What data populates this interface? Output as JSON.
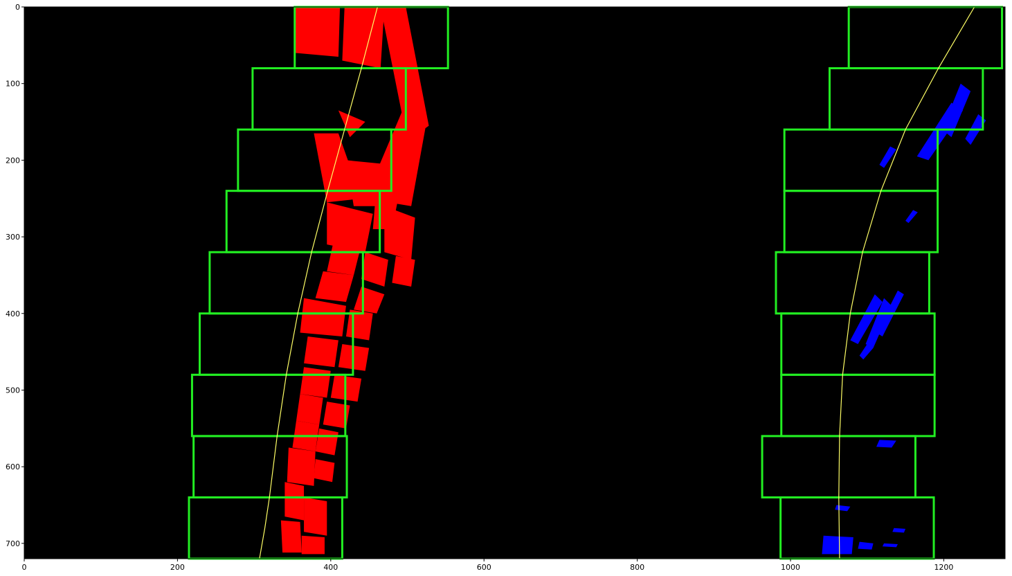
{
  "chart_data": {
    "type": "scatter",
    "title": "",
    "xlabel": "",
    "ylabel": "",
    "xlim": [
      0,
      1280
    ],
    "ylim": [
      720,
      0
    ],
    "xticks": [
      0,
      200,
      400,
      600,
      800,
      1000,
      1200
    ],
    "yticks": [
      0,
      100,
      200,
      300,
      400,
      500,
      600,
      700
    ],
    "grid": false,
    "background": "#000000",
    "colors": {
      "left_lane": "#ff0000",
      "right_lane": "#0000ff",
      "window": "#22ee22",
      "fit": "#ffff66"
    },
    "left_windows": [
      {
        "x0": 353,
        "x1": 553,
        "y0": 0,
        "y1": 80
      },
      {
        "x0": 298,
        "x1": 498,
        "y0": 80,
        "y1": 160
      },
      {
        "x0": 279,
        "x1": 479,
        "y0": 160,
        "y1": 240
      },
      {
        "x0": 264,
        "x1": 464,
        "y0": 240,
        "y1": 320
      },
      {
        "x0": 242,
        "x1": 442,
        "y0": 320,
        "y1": 400
      },
      {
        "x0": 229,
        "x1": 429,
        "y0": 400,
        "y1": 480
      },
      {
        "x0": 219,
        "x1": 419,
        "y0": 480,
        "y1": 560
      },
      {
        "x0": 221,
        "x1": 421,
        "y0": 560,
        "y1": 640
      },
      {
        "x0": 215,
        "x1": 415,
        "y0": 640,
        "y1": 720
      }
    ],
    "right_windows": [
      {
        "x0": 1076,
        "x1": 1276,
        "y0": 0,
        "y1": 80
      },
      {
        "x0": 1051,
        "x1": 1251,
        "y0": 80,
        "y1": 160
      },
      {
        "x0": 992,
        "x1": 1192,
        "y0": 160,
        "y1": 240
      },
      {
        "x0": 992,
        "x1": 1192,
        "y0": 240,
        "y1": 320
      },
      {
        "x0": 981,
        "x1": 1181,
        "y0": 320,
        "y1": 400
      },
      {
        "x0": 988,
        "x1": 1188,
        "y0": 400,
        "y1": 480
      },
      {
        "x0": 988,
        "x1": 1188,
        "y0": 480,
        "y1": 560
      },
      {
        "x0": 963,
        "x1": 1163,
        "y0": 560,
        "y1": 640
      },
      {
        "x0": 987,
        "x1": 1187,
        "y0": 640,
        "y1": 720
      }
    ],
    "left_fit": {
      "x": [
        461,
        440,
        418,
        396,
        375,
        357,
        342,
        330,
        320,
        314,
        307
      ],
      "y": [
        0,
        80,
        160,
        240,
        320,
        400,
        480,
        560,
        640,
        680,
        720
      ]
    },
    "right_fit": {
      "x": [
        1240,
        1193,
        1150,
        1118,
        1094,
        1078,
        1068,
        1064,
        1063,
        1064
      ],
      "y": [
        0,
        80,
        160,
        240,
        320,
        400,
        480,
        560,
        640,
        720
      ]
    },
    "left_pixels": [
      {
        "x": [
          353,
          412,
          410,
          353
        ],
        "y": [
          0,
          0,
          65,
          60
        ]
      },
      {
        "x": [
          418,
          470,
          465,
          415
        ],
        "y": [
          0,
          0,
          80,
          70
        ]
      },
      {
        "x": [
          465,
          498,
          528,
          500
        ],
        "y": [
          0,
          0,
          155,
          175
        ]
      },
      {
        "x": [
          500,
          525,
          505,
          445
        ],
        "y": [
          120,
          150,
          260,
          250
        ]
      },
      {
        "x": [
          378,
          410,
          440,
          395
        ],
        "y": [
          165,
          165,
          250,
          255
        ]
      },
      {
        "x": [
          420,
          470,
          480,
          430
        ],
        "y": [
          200,
          205,
          260,
          260
        ]
      },
      {
        "x": [
          410,
          445,
          425
        ],
        "y": [
          135,
          150,
          170
        ]
      },
      {
        "x": [
          460,
          490,
          480,
          455
        ],
        "y": [
          230,
          240,
          290,
          290
        ]
      },
      {
        "x": [
          395,
          455,
          445,
          395
        ],
        "y": [
          255,
          270,
          320,
          310
        ]
      },
      {
        "x": [
          470,
          510,
          505,
          470
        ],
        "y": [
          260,
          275,
          330,
          320
        ]
      },
      {
        "x": [
          405,
          440,
          430,
          395
        ],
        "y": [
          300,
          310,
          350,
          345
        ]
      },
      {
        "x": [
          445,
          475,
          470,
          440
        ],
        "y": [
          320,
          330,
          365,
          355
        ]
      },
      {
        "x": [
          485,
          510,
          505,
          480
        ],
        "y": [
          325,
          330,
          365,
          360
        ]
      },
      {
        "x": [
          390,
          430,
          420,
          380
        ],
        "y": [
          345,
          350,
          385,
          380
        ]
      },
      {
        "x": [
          440,
          470,
          460,
          430
        ],
        "y": [
          365,
          375,
          400,
          395
        ]
      },
      {
        "x": [
          365,
          420,
          415,
          360
        ],
        "y": [
          380,
          390,
          430,
          425
        ]
      },
      {
        "x": [
          425,
          455,
          450,
          420
        ],
        "y": [
          395,
          400,
          435,
          430
        ]
      },
      {
        "x": [
          370,
          410,
          405,
          365
        ],
        "y": [
          430,
          435,
          470,
          465
        ]
      },
      {
        "x": [
          415,
          450,
          445,
          410
        ],
        "y": [
          440,
          445,
          475,
          470
        ]
      },
      {
        "x": [
          365,
          400,
          395,
          360
        ],
        "y": [
          470,
          475,
          510,
          505
        ]
      },
      {
        "x": [
          405,
          440,
          435,
          400
        ],
        "y": [
          480,
          485,
          515,
          510
        ]
      },
      {
        "x": [
          360,
          390,
          385,
          355
        ],
        "y": [
          505,
          510,
          545,
          540
        ]
      },
      {
        "x": [
          395,
          425,
          420,
          390
        ],
        "y": [
          515,
          520,
          550,
          545
        ]
      },
      {
        "x": [
          355,
          385,
          380,
          350
        ],
        "y": [
          540,
          545,
          580,
          575
        ]
      },
      {
        "x": [
          385,
          410,
          405,
          380
        ],
        "y": [
          550,
          555,
          585,
          580
        ]
      },
      {
        "x": [
          345,
          380,
          378,
          343
        ],
        "y": [
          575,
          580,
          625,
          620
        ]
      },
      {
        "x": [
          380,
          405,
          402,
          378
        ],
        "y": [
          590,
          595,
          620,
          615
        ]
      },
      {
        "x": [
          340,
          365,
          365,
          340
        ],
        "y": [
          620,
          625,
          670,
          665
        ]
      },
      {
        "x": [
          365,
          395,
          395,
          365
        ],
        "y": [
          640,
          645,
          690,
          685
        ]
      },
      {
        "x": [
          335,
          360,
          362,
          337
        ],
        "y": [
          670,
          672,
          712,
          712
        ]
      },
      {
        "x": [
          362,
          392,
          392,
          362
        ],
        "y": [
          690,
          692,
          714,
          714
        ]
      }
    ],
    "right_pixels": [
      {
        "x": [
          1210,
          1225,
          1180,
          1165
        ],
        "y": [
          125,
          135,
          200,
          195
        ]
      },
      {
        "x": [
          1222,
          1235,
          1210,
          1198
        ],
        "y": [
          100,
          110,
          170,
          160
        ]
      },
      {
        "x": [
          1245,
          1255,
          1235,
          1228
        ],
        "y": [
          140,
          148,
          180,
          172
        ]
      },
      {
        "x": [
          1130,
          1138,
          1122,
          1116
        ],
        "y": [
          182,
          186,
          210,
          206
        ]
      },
      {
        "x": [
          1160,
          1166,
          1154,
          1150
        ],
        "y": [
          265,
          268,
          282,
          279
        ]
      },
      {
        "x": [
          1110,
          1120,
          1088,
          1078
        ],
        "y": [
          375,
          385,
          440,
          435
        ]
      },
      {
        "x": [
          1122,
          1132,
          1108,
          1098
        ],
        "y": [
          380,
          390,
          445,
          440
        ]
      },
      {
        "x": [
          1140,
          1148,
          1120,
          1112
        ],
        "y": [
          370,
          375,
          430,
          425
        ]
      },
      {
        "x": [
          1100,
          1108,
          1095,
          1090
        ],
        "y": [
          440,
          445,
          460,
          455
        ]
      },
      {
        "x": [
          1116,
          1138,
          1132,
          1112
        ],
        "y": [
          565,
          566,
          575,
          574
        ]
      },
      {
        "x": [
          1060,
          1078,
          1074,
          1058
        ],
        "y": [
          650,
          652,
          658,
          656
        ]
      },
      {
        "x": [
          1043,
          1082,
          1080,
          1041
        ],
        "y": [
          690,
          692,
          714,
          714
        ]
      },
      {
        "x": [
          1090,
          1108,
          1106,
          1088
        ],
        "y": [
          698,
          700,
          708,
          707
        ]
      },
      {
        "x": [
          1122,
          1140,
          1138,
          1120
        ],
        "y": [
          700,
          701,
          705,
          704
        ]
      },
      {
        "x": [
          1135,
          1150,
          1148,
          1133
        ],
        "y": [
          680,
          681,
          686,
          685
        ]
      }
    ]
  }
}
